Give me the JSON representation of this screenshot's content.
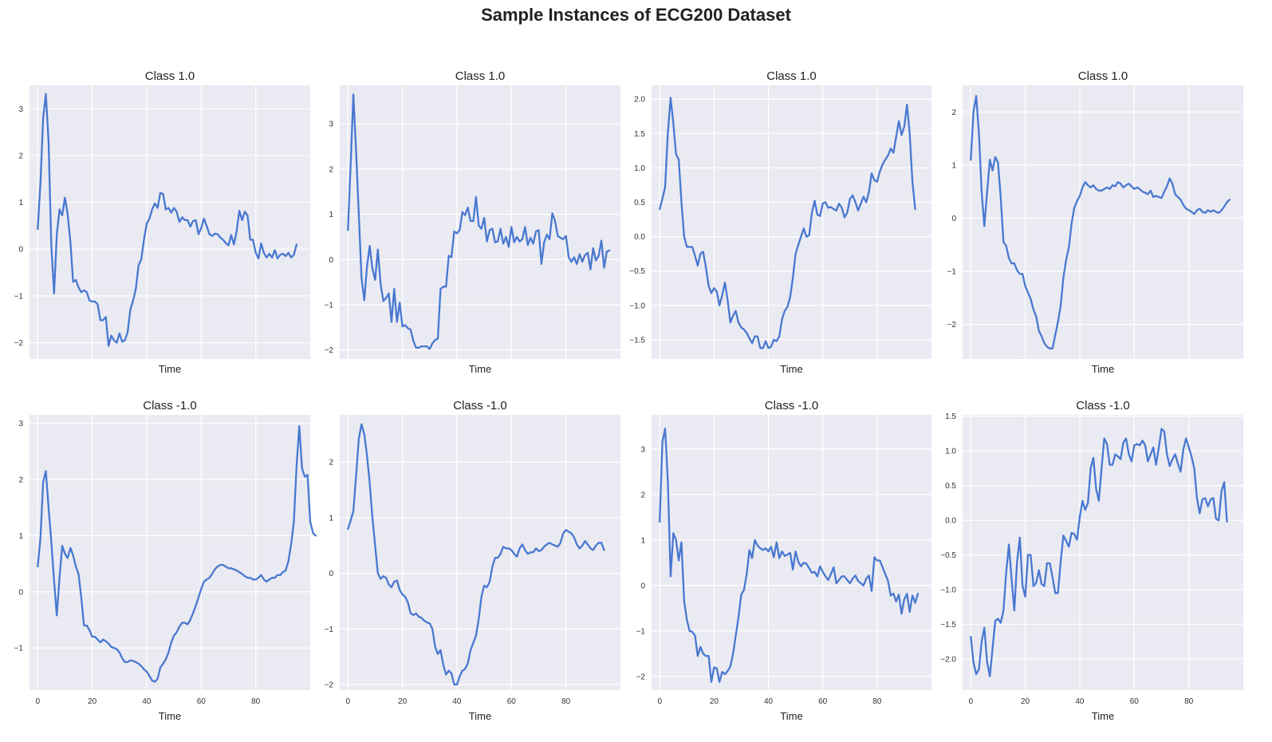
{
  "suptitle": "Sample Instances of ECG200 Dataset",
  "colors": {
    "line": "#4878d0",
    "background": "#eaeaf2",
    "grid": "#ffffff"
  },
  "chart_data": [
    {
      "type": "line",
      "title": "Class 1.0",
      "xlabel": "Time",
      "grid": true,
      "xlim": [
        -3,
        100
      ],
      "ylim": [
        -2.35,
        3.5
      ],
      "xticks": [
        0,
        20,
        40,
        60,
        80
      ],
      "show_xtick_labels": false,
      "yticks": [
        -2,
        -1,
        0,
        1,
        2,
        3
      ],
      "series": [
        {
          "x_start": 0,
          "values": [
            0.43,
            1.4,
            2.8,
            3.32,
            2.3,
            0.1,
            -0.95,
            0.3,
            0.85,
            0.72,
            1.1,
            0.75,
            0.15,
            -0.7,
            -0.66,
            -0.82,
            -0.92,
            -0.88,
            -0.92,
            -1.1,
            -1.12,
            -1.12,
            -1.18,
            -1.52,
            -1.52,
            -1.45,
            -2.07,
            -1.85,
            -1.95,
            -2.0,
            -1.8,
            -1.98,
            -1.95,
            -1.78,
            -1.3,
            -1.1,
            -0.85,
            -0.35,
            -0.22,
            0.2,
            0.55,
            0.65,
            0.85,
            0.98,
            0.88,
            1.2,
            1.18,
            0.85,
            0.88,
            0.78,
            0.88,
            0.8,
            0.58,
            0.68,
            0.62,
            0.62,
            0.48,
            0.6,
            0.62,
            0.32,
            0.45,
            0.65,
            0.5,
            0.32,
            0.28,
            0.33,
            0.32,
            0.25,
            0.2,
            0.13,
            0.08,
            0.3,
            0.1,
            0.38,
            0.82,
            0.62,
            0.8,
            0.72,
            0.2,
            0.2,
            -0.08,
            -0.2,
            0.12,
            -0.08,
            -0.18,
            -0.1,
            -0.18,
            -0.02,
            -0.2,
            -0.12,
            -0.1,
            -0.15,
            -0.08,
            -0.18,
            -0.12,
            0.1
          ]
        }
      ]
    },
    {
      "type": "line",
      "title": "Class 1.0",
      "xlabel": "Time",
      "grid": true,
      "xlim": [
        -3,
        100
      ],
      "ylim": [
        -2.2,
        3.85
      ],
      "xticks": [
        0,
        20,
        40,
        60,
        80
      ],
      "show_xtick_labels": false,
      "yticks": [
        -2,
        -1,
        0,
        1,
        2,
        3
      ],
      "series": [
        {
          "x_start": 0,
          "values": [
            0.65,
            2.1,
            3.65,
            2.4,
            1.0,
            -0.4,
            -0.9,
            -0.15,
            0.3,
            -0.2,
            -0.45,
            0.22,
            -0.55,
            -0.92,
            -0.85,
            -0.75,
            -1.38,
            -0.65,
            -1.38,
            -0.95,
            -1.48,
            -1.45,
            -1.52,
            -1.55,
            -1.8,
            -1.95,
            -1.95,
            -1.92,
            -1.92,
            -1.92,
            -1.98,
            -1.85,
            -1.78,
            -1.75,
            -0.65,
            -0.6,
            -0.6,
            0.08,
            0.05,
            0.62,
            0.58,
            0.65,
            1.05,
            0.98,
            1.15,
            0.85,
            0.85,
            1.38,
            0.75,
            0.68,
            0.92,
            0.4,
            0.65,
            0.68,
            0.38,
            0.4,
            0.68,
            0.35,
            0.5,
            0.28,
            0.72,
            0.38,
            0.5,
            0.4,
            0.45,
            0.72,
            0.32,
            0.48,
            0.35,
            0.62,
            0.65,
            -0.1,
            0.38,
            0.55,
            0.45,
            1.02,
            0.85,
            0.52,
            0.48,
            0.45,
            0.52,
            0.05,
            -0.05,
            0.05,
            -0.1,
            0.12,
            -0.05,
            0.1,
            0.15,
            -0.22,
            0.25,
            -0.02,
            0.08,
            0.42,
            -0.18,
            0.18,
            0.2
          ]
        }
      ]
    },
    {
      "type": "line",
      "title": "Class 1.0",
      "xlabel": "Time",
      "grid": true,
      "xlim": [
        -3,
        100
      ],
      "ylim": [
        -1.78,
        2.2
      ],
      "xticks": [
        0,
        20,
        40,
        60,
        80
      ],
      "show_xtick_labels": false,
      "yticks": [
        -1.5,
        -1.0,
        -0.5,
        0.0,
        0.5,
        1.0,
        1.5,
        2.0
      ],
      "ytick_labels": [
        "−1.5",
        "−1.0",
        "−0.5",
        "0.0",
        "0.5",
        "1.0",
        "1.5",
        "2.0"
      ],
      "series": [
        {
          "x_start": 0,
          "values": [
            0.4,
            0.55,
            0.72,
            1.5,
            2.02,
            1.65,
            1.2,
            1.12,
            0.5,
            0.0,
            -0.15,
            -0.15,
            -0.15,
            -0.28,
            -0.42,
            -0.25,
            -0.22,
            -0.45,
            -0.72,
            -0.82,
            -0.75,
            -0.8,
            -1.0,
            -0.85,
            -0.67,
            -0.92,
            -1.25,
            -1.15,
            -1.08,
            -1.25,
            -1.32,
            -1.35,
            -1.4,
            -1.48,
            -1.55,
            -1.45,
            -1.45,
            -1.62,
            -1.62,
            -1.52,
            -1.62,
            -1.6,
            -1.5,
            -1.52,
            -1.45,
            -1.2,
            -1.08,
            -1.02,
            -0.88,
            -0.6,
            -0.25,
            -0.12,
            0.0,
            0.12,
            0.0,
            0.02,
            0.35,
            0.52,
            0.32,
            0.3,
            0.48,
            0.5,
            0.42,
            0.43,
            0.4,
            0.38,
            0.48,
            0.42,
            0.28,
            0.35,
            0.55,
            0.6,
            0.5,
            0.38,
            0.48,
            0.58,
            0.5,
            0.65,
            0.92,
            0.82,
            0.8,
            0.95,
            1.05,
            1.12,
            1.18,
            1.28,
            1.22,
            1.45,
            1.68,
            1.48,
            1.6,
            1.92,
            1.5,
            0.8,
            0.4
          ]
        }
      ]
    },
    {
      "type": "line",
      "title": "Class 1.0",
      "xlabel": "Time",
      "grid": true,
      "xlim": [
        -3,
        100
      ],
      "ylim": [
        -2.65,
        2.5
      ],
      "xticks": [
        0,
        20,
        40,
        60,
        80
      ],
      "show_xtick_labels": false,
      "yticks": [
        -2,
        -1,
        0,
        1,
        2
      ],
      "series": [
        {
          "x_start": 0,
          "values": [
            1.1,
            2.0,
            2.3,
            1.6,
            0.5,
            -0.15,
            0.5,
            1.1,
            0.9,
            1.15,
            1.05,
            0.4,
            -0.45,
            -0.52,
            -0.75,
            -0.85,
            -0.85,
            -0.98,
            -1.05,
            -1.05,
            -1.28,
            -1.4,
            -1.52,
            -1.72,
            -1.85,
            -2.12,
            -2.22,
            -2.35,
            -2.42,
            -2.45,
            -2.45,
            -2.2,
            -1.95,
            -1.65,
            -1.12,
            -0.78,
            -0.55,
            -0.1,
            0.2,
            0.32,
            0.42,
            0.58,
            0.68,
            0.62,
            0.58,
            0.62,
            0.55,
            0.52,
            0.52,
            0.55,
            0.58,
            0.55,
            0.62,
            0.6,
            0.68,
            0.65,
            0.58,
            0.62,
            0.65,
            0.6,
            0.55,
            0.58,
            0.55,
            0.5,
            0.48,
            0.45,
            0.52,
            0.4,
            0.42,
            0.4,
            0.38,
            0.5,
            0.6,
            0.75,
            0.65,
            0.45,
            0.4,
            0.35,
            0.25,
            0.18,
            0.15,
            0.12,
            0.08,
            0.15,
            0.18,
            0.12,
            0.1,
            0.15,
            0.12,
            0.15,
            0.12,
            0.1,
            0.15,
            0.22,
            0.3,
            0.35
          ]
        }
      ]
    },
    {
      "type": "line",
      "title": "Class -1.0",
      "xlabel": "Time",
      "grid": true,
      "xlim": [
        -3,
        100
      ],
      "ylim": [
        -1.75,
        3.15
      ],
      "xticks": [
        0,
        20,
        40,
        60,
        80
      ],
      "show_xtick_labels": true,
      "yticks": [
        -1,
        0,
        1,
        2,
        3
      ],
      "series": [
        {
          "x_start": 0,
          "values": [
            0.45,
            0.95,
            1.95,
            2.15,
            1.5,
            0.9,
            0.2,
            -0.42,
            0.25,
            0.82,
            0.68,
            0.6,
            0.78,
            0.65,
            0.45,
            0.32,
            -0.1,
            -0.6,
            -0.6,
            -0.68,
            -0.8,
            -0.8,
            -0.85,
            -0.9,
            -0.85,
            -0.88,
            -0.92,
            -0.98,
            -1.0,
            -1.02,
            -1.08,
            -1.18,
            -1.25,
            -1.25,
            -1.22,
            -1.23,
            -1.25,
            -1.28,
            -1.32,
            -1.38,
            -1.42,
            -1.5,
            -1.58,
            -1.6,
            -1.55,
            -1.35,
            -1.28,
            -1.2,
            -1.08,
            -0.9,
            -0.78,
            -0.72,
            -0.62,
            -0.55,
            -0.55,
            -0.58,
            -0.5,
            -0.38,
            -0.25,
            -0.1,
            0.05,
            0.18,
            0.22,
            0.25,
            0.32,
            0.4,
            0.45,
            0.48,
            0.48,
            0.45,
            0.42,
            0.42,
            0.4,
            0.38,
            0.35,
            0.32,
            0.28,
            0.25,
            0.25,
            0.22,
            0.22,
            0.25,
            0.3,
            0.22,
            0.18,
            0.22,
            0.25,
            0.25,
            0.3,
            0.3,
            0.35,
            0.38,
            0.55,
            0.85,
            1.25,
            2.25,
            2.95,
            2.2,
            2.05,
            2.08,
            1.25,
            1.05,
            1.0
          ]
        }
      ]
    },
    {
      "type": "line",
      "title": "Class -1.0",
      "xlabel": "Time",
      "grid": true,
      "xlim": [
        -3,
        100
      ],
      "ylim": [
        -2.1,
        2.85
      ],
      "xticks": [
        0,
        20,
        40,
        60,
        80
      ],
      "show_xtick_labels": true,
      "yticks": [
        -2,
        -1,
        0,
        1,
        2
      ],
      "series": [
        {
          "x_start": 0,
          "values": [
            0.8,
            0.95,
            1.12,
            1.75,
            2.42,
            2.68,
            2.5,
            2.12,
            1.62,
            1.0,
            0.5,
            0.0,
            -0.1,
            -0.05,
            -0.08,
            -0.2,
            -0.25,
            -0.15,
            -0.13,
            -0.3,
            -0.38,
            -0.42,
            -0.52,
            -0.72,
            -0.75,
            -0.72,
            -0.78,
            -0.8,
            -0.85,
            -0.88,
            -0.9,
            -1.0,
            -1.32,
            -1.45,
            -1.38,
            -1.65,
            -1.82,
            -1.75,
            -1.8,
            -2.0,
            -2.0,
            -1.85,
            -1.75,
            -1.72,
            -1.62,
            -1.38,
            -1.25,
            -1.12,
            -0.82,
            -0.42,
            -0.22,
            -0.25,
            -0.15,
            0.12,
            0.28,
            0.28,
            0.35,
            0.48,
            0.45,
            0.45,
            0.42,
            0.35,
            0.3,
            0.45,
            0.52,
            0.42,
            0.35,
            0.38,
            0.38,
            0.45,
            0.4,
            0.42,
            0.48,
            0.52,
            0.55,
            0.52,
            0.5,
            0.48,
            0.55,
            0.72,
            0.78,
            0.75,
            0.72,
            0.65,
            0.52,
            0.45,
            0.5,
            0.58,
            0.52,
            0.45,
            0.42,
            0.5,
            0.55,
            0.55,
            0.42
          ]
        }
      ]
    },
    {
      "type": "line",
      "title": "Class -1.0",
      "xlabel": "Time",
      "grid": true,
      "xlim": [
        -3,
        100
      ],
      "ylim": [
        -2.3,
        3.75
      ],
      "xticks": [
        0,
        20,
        40,
        60,
        80
      ],
      "show_xtick_labels": true,
      "yticks": [
        -2,
        -1,
        0,
        1,
        2,
        3
      ],
      "series": [
        {
          "x_start": 0,
          "values": [
            1.4,
            3.15,
            3.45,
            2.3,
            0.2,
            1.15,
            1.0,
            0.55,
            0.95,
            -0.35,
            -0.75,
            -1.0,
            -1.02,
            -1.1,
            -1.55,
            -1.35,
            -1.5,
            -1.55,
            -1.55,
            -2.12,
            -1.8,
            -1.82,
            -2.12,
            -1.9,
            -1.95,
            -1.88,
            -1.78,
            -1.5,
            -1.1,
            -0.7,
            -0.2,
            -0.1,
            0.25,
            0.78,
            0.6,
            1.0,
            0.88,
            0.82,
            0.78,
            0.82,
            0.75,
            0.85,
            0.62,
            0.95,
            0.6,
            0.75,
            0.65,
            0.68,
            0.72,
            0.35,
            0.75,
            0.52,
            0.42,
            0.5,
            0.48,
            0.38,
            0.28,
            0.3,
            0.2,
            0.42,
            0.3,
            0.2,
            0.12,
            0.25,
            0.4,
            0.05,
            0.12,
            0.2,
            0.2,
            0.12,
            0.05,
            0.15,
            0.22,
            0.1,
            0.05,
            0.0,
            0.15,
            0.22,
            -0.12,
            0.62,
            0.55,
            0.55,
            0.4,
            0.25,
            0.1,
            -0.22,
            -0.18,
            -0.35,
            -0.2,
            -0.62,
            -0.3,
            -0.18,
            -0.58,
            -0.22,
            -0.38,
            -0.18
          ]
        }
      ]
    },
    {
      "type": "line",
      "title": "Class -1.0",
      "xlabel": "Time",
      "grid": true,
      "xlim": [
        -3,
        100
      ],
      "ylim": [
        -2.45,
        1.52
      ],
      "xticks": [
        0,
        20,
        40,
        60,
        80
      ],
      "show_xtick_labels": true,
      "yticks": [
        -2.0,
        -1.5,
        -1.0,
        -0.5,
        0.0,
        0.5,
        1.0,
        1.5
      ],
      "ytick_labels": [
        "−2.0",
        "−1.5",
        "−1.0",
        "−0.5",
        "0.0",
        "0.5",
        "1.0",
        "1.5"
      ],
      "series": [
        {
          "x_start": 0,
          "values": [
            -1.68,
            -2.05,
            -2.22,
            -2.15,
            -1.75,
            -1.55,
            -2.05,
            -2.25,
            -1.85,
            -1.45,
            -1.42,
            -1.48,
            -1.3,
            -0.75,
            -0.35,
            -0.85,
            -1.3,
            -0.6,
            -0.25,
            -0.95,
            -1.1,
            -0.5,
            -0.5,
            -0.95,
            -0.9,
            -0.72,
            -0.92,
            -0.95,
            -0.62,
            -0.62,
            -0.82,
            -1.05,
            -1.05,
            -0.6,
            -0.22,
            -0.3,
            -0.38,
            -0.18,
            -0.2,
            -0.28,
            0.05,
            0.28,
            0.15,
            0.25,
            0.75,
            0.9,
            0.45,
            0.28,
            0.75,
            1.18,
            1.1,
            0.8,
            0.8,
            0.95,
            0.92,
            0.88,
            1.12,
            1.18,
            0.95,
            0.85,
            1.08,
            1.1,
            1.08,
            1.15,
            1.08,
            0.85,
            0.95,
            1.05,
            0.8,
            1.05,
            1.32,
            1.28,
            0.95,
            0.78,
            0.88,
            0.95,
            0.82,
            0.7,
            1.02,
            1.18,
            1.05,
            0.92,
            0.75,
            0.32,
            0.1,
            0.3,
            0.32,
            0.2,
            0.3,
            0.32,
            0.02,
            0.0,
            0.42,
            0.55,
            -0.02
          ]
        }
      ]
    }
  ]
}
